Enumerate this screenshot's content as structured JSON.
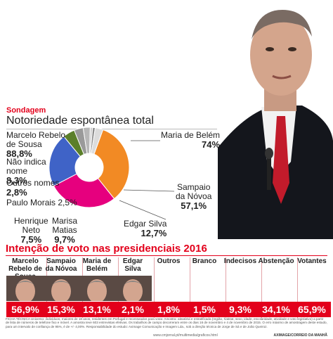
{
  "header": {
    "tag": "Sondagem",
    "subtitle": "Notoriedade espontânea total"
  },
  "chart_data": [
    {
      "type": "pie",
      "title": "Notoriedade espontânea total",
      "categories": [
        "Marcelo Rebelo de Sousa",
        "Maria de Belém",
        "Sampaio da Nóvoa",
        "Edgar Silva",
        "Marisa Matias",
        "Henrique Neto",
        "Paulo Morais",
        "Outros nomes",
        "Não indica nome"
      ],
      "labels": [
        "Marcelo Rebelo de Sousa",
        "Maria de Belém",
        "Sampaio da Nóvoa",
        "Edgar Silva",
        "Marisa Matias",
        "Henrique Neto",
        "Paulo Morais",
        "Outros nomes",
        "Não indica nome"
      ],
      "values": [
        88.8,
        74,
        57.1,
        12.7,
        9.7,
        7.5,
        2.5,
        2.8,
        8.3
      ],
      "value_labels": [
        "88,8%",
        "74%",
        "57,1%",
        "12,7%",
        "9,7%",
        "7,5%",
        "2,5%",
        "2,8%",
        "8,3%"
      ],
      "colors": [
        "#f28a24",
        "#e6007e",
        "#3f63c7",
        "#5b7f2a",
        "#9a9a9a",
        "#b7b7b7",
        "#cfcfcf",
        "#8d8d8d",
        "#dcdcdc"
      ]
    },
    {
      "type": "bar",
      "title": "Intenção de voto nas presidenciais 2016",
      "categories": [
        "Marcelo Rebelo de Sousa",
        "Sampaio da Nóvoa",
        "Maria de Belém",
        "Edgar Silva",
        "Outros",
        "Branco",
        "Indecisos",
        "Abstenção",
        "Votantes"
      ],
      "values": [
        56.9,
        15.3,
        13.1,
        2.1,
        1.8,
        1.5,
        9.3,
        34.1,
        65.9
      ],
      "value_labels": [
        "56,9%",
        "15,3%",
        "13,1%",
        "2,1%",
        "1,8%",
        "1,5%",
        "9,3%",
        "34,1%",
        "65,9%"
      ]
    }
  ],
  "pie_labels": {
    "marcelo": {
      "name_1": "Marcelo Rebelo",
      "name_2": "de Sousa",
      "pct": "88,8%"
    },
    "nao_indica": {
      "name_1": "Não indica",
      "name_2": "nome",
      "pct": "8,3%"
    },
    "outros": {
      "name": "Outros nomes",
      "pct": "2,8%"
    },
    "paulo": {
      "name_pct": "Paulo Morais 2,5%"
    },
    "henrique": {
      "name_1": "Henrique",
      "name_2": "Neto",
      "pct": "7,5%"
    },
    "marisa": {
      "name_1": "Marisa",
      "name_2": "Matias",
      "pct": "9,7%"
    },
    "edgar": {
      "name": "Edgar Silva",
      "pct": "12,7%"
    },
    "sampaio": {
      "name_1": "Sampaio",
      "name_2": "da Nóvoa",
      "pct": "57,1%"
    },
    "belem": {
      "name": "Maria de Belém",
      "pct": "74%"
    }
  },
  "section": {
    "title": "Intenção de voto nas presidenciais 2016"
  },
  "candidates": [
    {
      "name_1": "Marcelo",
      "name_2": "Rebelo de Sousa",
      "value": "56,9%",
      "photo": true
    },
    {
      "name_1": "Sampaio",
      "name_2": "da Nóvoa",
      "value": "15,3%",
      "photo": true
    },
    {
      "name_1": "Maria de",
      "name_2": "Belém",
      "value": "13,1%",
      "photo": true
    },
    {
      "name_1": "Edgar",
      "name_2": "Silva",
      "value": "2,1%",
      "photo": true
    },
    {
      "name_1": "Outros",
      "name_2": "",
      "value": "1,8%",
      "photo": false
    },
    {
      "name_1": "Branco",
      "name_2": "",
      "value": "1,5%",
      "photo": false
    },
    {
      "name_1": "Indecisos",
      "name_2": "",
      "value": "9,3%",
      "photo": false
    },
    {
      "name_1": "Abstenção",
      "name_2": "",
      "value": "34,1%",
      "photo": false
    },
    {
      "name_1": "Votantes",
      "name_2": "",
      "value": "65,9%",
      "photo": false
    }
  ],
  "technical_note": "FICHA TÉCNICA Universo: indivíduos, maiores de 18 anos, residentes em Portugal e recenseados para votar. Amostra: aleatória e estratificada (região, habitat, sexo, idade, escolaridade, atividade e voto legislativo) a partir de lista de números de telefone fixo e móvel. A amostra teve 603 entrevistas efetivas. Os trabalhos de campo decorreram entre os dias 16 de novembro e 4 de novembro de 2015. O erro máximo de amostragem deste estudo, para um intervalo de confiança de 95%, é de +/- 4,00%. Responsabilidade do estudo: Aximage Comunicação e Imagem Lda., sob a direção técnica de Jorge de Sá e de João Queiroz.",
  "footer": {
    "left": "www.cmjornal.pt/multimedia/graficos.html",
    "right": "AXIMAGE/CORREIO DA MANHÃ"
  }
}
